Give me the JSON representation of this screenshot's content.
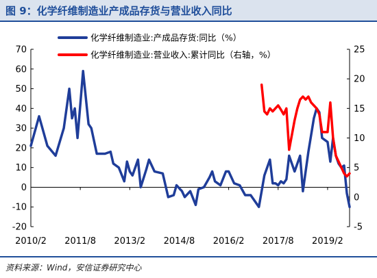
{
  "header": {
    "title": "图 9：化学纤维制造业产成品存货与营业收入同比"
  },
  "footer": {
    "source": "资料来源：Wind，安信证券研究中心"
  },
  "colors": {
    "series_1": "#1f3d99",
    "series_2": "#ff0000",
    "accent": "#1f4e9a"
  },
  "chart_data": {
    "type": "line",
    "x_ticks": [
      "2010/2",
      "2011/8",
      "2013/2",
      "2014/8",
      "2016/2",
      "2017/8",
      "2019/2"
    ],
    "x_range": [
      "2010-02",
      "2019-10"
    ],
    "y_left": {
      "ticks": [
        "-20",
        "-10",
        "0",
        "10",
        "20",
        "30",
        "40",
        "50",
        "60",
        "70"
      ],
      "lim": [
        -20,
        70
      ]
    },
    "y_right": {
      "ticks": [
        "-5",
        "0",
        "5",
        "10",
        "15",
        "20",
        "25"
      ],
      "lim": [
        -5,
        25
      ]
    },
    "grid": false,
    "legend_position": "top",
    "series": [
      {
        "name": "化学纤维制造业:产成品存货:同比（%）",
        "axis": "left",
        "color": "#1f3d99",
        "points": [
          [
            "2010-02",
            21
          ],
          [
            "2010-05",
            36
          ],
          [
            "2010-08",
            21
          ],
          [
            "2010-11",
            16
          ],
          [
            "2011-02",
            30
          ],
          [
            "2011-04",
            50
          ],
          [
            "2011-05",
            35
          ],
          [
            "2011-06",
            40
          ],
          [
            "2011-07",
            25
          ],
          [
            "2011-09",
            59
          ],
          [
            "2011-11",
            32
          ],
          [
            "2011-12",
            30
          ],
          [
            "2012-02",
            17
          ],
          [
            "2012-05",
            17
          ],
          [
            "2012-07",
            18
          ],
          [
            "2012-08",
            12
          ],
          [
            "2012-10",
            10
          ],
          [
            "2012-12",
            3
          ],
          [
            "2013-01",
            13
          ],
          [
            "2013-02",
            8
          ],
          [
            "2013-03",
            6
          ],
          [
            "2013-05",
            14
          ],
          [
            "2013-06",
            0
          ],
          [
            "2013-08",
            9
          ],
          [
            "2013-09",
            14
          ],
          [
            "2013-11",
            8
          ],
          [
            "2014-02",
            7
          ],
          [
            "2014-04",
            -5
          ],
          [
            "2014-06",
            -4
          ],
          [
            "2014-07",
            1
          ],
          [
            "2014-09",
            -2
          ],
          [
            "2014-10",
            -5
          ],
          [
            "2014-12",
            -2
          ],
          [
            "2015-02",
            -9
          ],
          [
            "2015-03",
            -1
          ],
          [
            "2015-05",
            0
          ],
          [
            "2015-07",
            5
          ],
          [
            "2015-08",
            8
          ],
          [
            "2015-09",
            3
          ],
          [
            "2015-11",
            1
          ],
          [
            "2016-01",
            8
          ],
          [
            "2016-02",
            8
          ],
          [
            "2016-04",
            2
          ],
          [
            "2016-06",
            1
          ],
          [
            "2016-08",
            -4
          ],
          [
            "2016-10",
            -4
          ],
          [
            "2017-01",
            -10
          ],
          [
            "2017-03",
            6
          ],
          [
            "2017-05",
            14
          ],
          [
            "2017-06",
            2
          ],
          [
            "2017-07",
            2
          ],
          [
            "2017-08",
            1
          ],
          [
            "2017-09",
            3
          ],
          [
            "2017-10",
            2
          ],
          [
            "2017-11",
            4
          ],
          [
            "2017-12",
            16
          ],
          [
            "2018-02",
            8
          ],
          [
            "2018-04",
            16
          ],
          [
            "2018-05",
            -2
          ],
          [
            "2018-07",
            18
          ],
          [
            "2018-09",
            35
          ],
          [
            "2018-10",
            40
          ],
          [
            "2018-11",
            38
          ],
          [
            "2018-12",
            25
          ],
          [
            "2019-01",
            24
          ],
          [
            "2019-02",
            23
          ],
          [
            "2019-03",
            13
          ],
          [
            "2019-04",
            25
          ],
          [
            "2019-05",
            16
          ],
          [
            "2019-06",
            12
          ],
          [
            "2019-07",
            10
          ],
          [
            "2019-08",
            11
          ],
          [
            "2019-09",
            -3
          ],
          [
            "2019-10",
            -10
          ]
        ]
      },
      {
        "name": "化学纤维制造业:营业收入:累计同比（右轴，%）",
        "axis": "right",
        "color": "#ff0000",
        "points": [
          [
            "2017-02",
            19
          ],
          [
            "2017-03",
            14.5
          ],
          [
            "2017-04",
            14
          ],
          [
            "2017-05",
            15
          ],
          [
            "2017-06",
            14.5
          ],
          [
            "2017-07",
            15
          ],
          [
            "2017-08",
            15.5
          ],
          [
            "2017-09",
            14.8
          ],
          [
            "2017-10",
            14
          ],
          [
            "2017-11",
            15
          ],
          [
            "2017-12",
            8
          ],
          [
            "2018-02",
            13
          ],
          [
            "2018-03",
            15
          ],
          [
            "2018-04",
            16.5
          ],
          [
            "2018-05",
            17
          ],
          [
            "2018-06",
            16.5
          ],
          [
            "2018-07",
            17
          ],
          [
            "2018-08",
            16
          ],
          [
            "2018-09",
            15.5
          ],
          [
            "2018-10",
            15
          ],
          [
            "2018-11",
            14
          ],
          [
            "2018-12",
            11
          ],
          [
            "2019-02",
            11
          ],
          [
            "2019-03",
            16
          ],
          [
            "2019-04",
            10
          ],
          [
            "2019-05",
            7
          ],
          [
            "2019-06",
            6
          ],
          [
            "2019-07",
            5
          ],
          [
            "2019-08",
            4
          ],
          [
            "2019-09",
            3.5
          ],
          [
            "2019-10",
            4
          ]
        ]
      }
    ]
  }
}
